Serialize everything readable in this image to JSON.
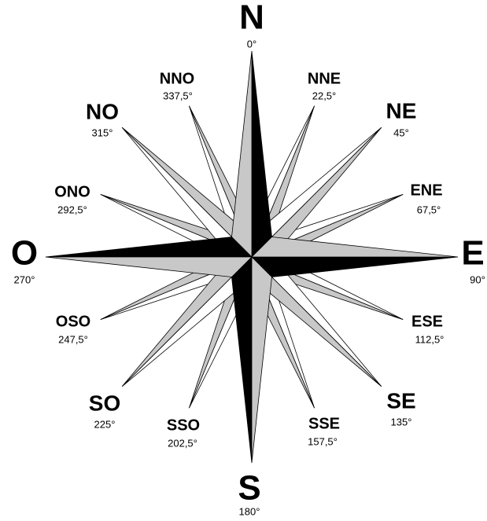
{
  "points": [
    {
      "label": "N",
      "degrees": "0°"
    },
    {
      "label": "NNE",
      "degrees": "22,5°"
    },
    {
      "label": "NE",
      "degrees": "45°"
    },
    {
      "label": "ENE",
      "degrees": "67,5°"
    },
    {
      "label": "E",
      "degrees": "90°"
    },
    {
      "label": "ESE",
      "degrees": "112,5°"
    },
    {
      "label": "SE",
      "degrees": "135°"
    },
    {
      "label": "SSE",
      "degrees": "157,5°"
    },
    {
      "label": "S",
      "degrees": "180°"
    },
    {
      "label": "SSO",
      "degrees": "202,5°"
    },
    {
      "label": "SO",
      "degrees": "225°"
    },
    {
      "label": "OSO",
      "degrees": "247,5°"
    },
    {
      "label": "O",
      "degrees": "270°"
    },
    {
      "label": "ONO",
      "degrees": "292,5°"
    },
    {
      "label": "NO",
      "degrees": "315°"
    },
    {
      "label": "NNO",
      "degrees": "337,5°"
    }
  ]
}
